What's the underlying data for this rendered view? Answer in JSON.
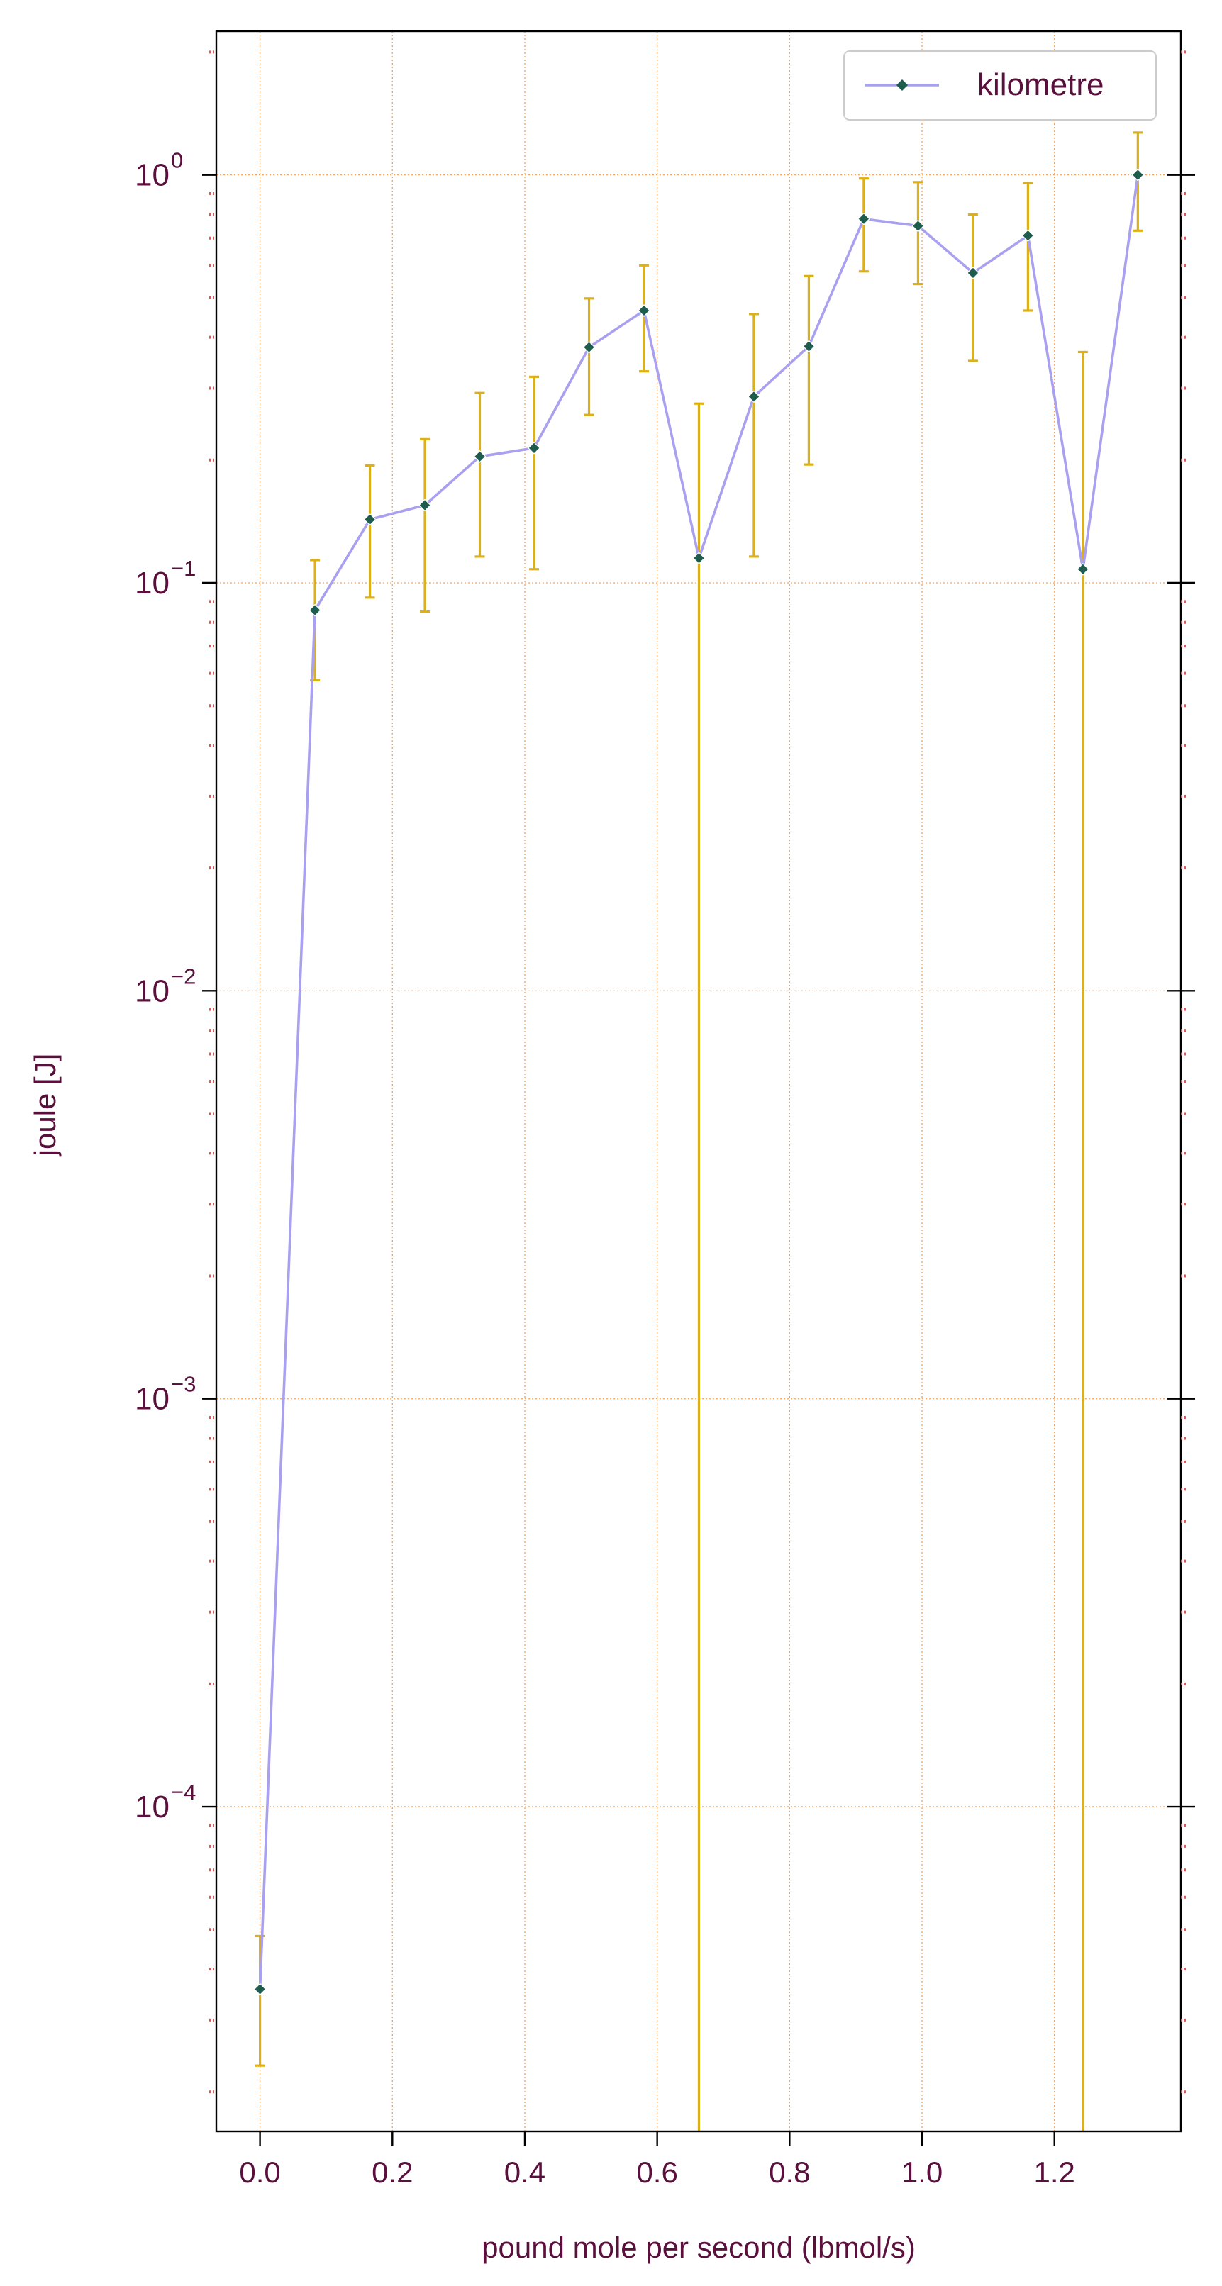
{
  "chart_data": {
    "type": "line",
    "title": "",
    "xlabel": "pound mole per second (lbmol/s)",
    "ylabel": "joule [J]",
    "xlim": [
      -0.066,
      1.391
    ],
    "ylim": [
      1.6e-05,
      2.25
    ],
    "yscale": "log",
    "grid": true,
    "legend_position": "top-right",
    "x_ticks": [
      0.0,
      0.2,
      0.4,
      0.6,
      0.8,
      1.0,
      1.2
    ],
    "x_tick_labels": [
      "0.0",
      "0.2",
      "0.4",
      "0.6",
      "0.8",
      "1.0",
      "1.2"
    ],
    "y_ticks": [
      0.0001,
      0.001,
      0.01,
      0.1,
      1
    ],
    "y_tick_labels": [
      {
        "base": "10",
        "exp": "−4"
      },
      {
        "base": "10",
        "exp": "−3"
      },
      {
        "base": "10",
        "exp": "−2"
      },
      {
        "base": "10",
        "exp": "−1"
      },
      {
        "base": "10",
        "exp": "0"
      }
    ],
    "series": [
      {
        "name": "kilometre",
        "line_color": "#a9a1f0",
        "marker_color": "#1e5d4e",
        "error_color": "#ddb013",
        "x": [
          0.0,
          0.083,
          0.166,
          0.249,
          0.332,
          0.414,
          0.497,
          0.58,
          0.663,
          0.746,
          0.829,
          0.912,
          0.994,
          1.077,
          1.16,
          1.243,
          1.326
        ],
        "y": [
          3.57e-05,
          0.0857,
          0.143,
          0.155,
          0.204,
          0.214,
          0.378,
          0.465,
          0.115,
          0.286,
          0.38,
          0.78,
          0.75,
          0.575,
          0.71,
          0.108,
          1.0
        ],
        "yerr": [
          1.25e-05,
          0.028,
          0.051,
          0.07,
          0.088,
          0.106,
          0.12,
          0.135,
          0.16,
          0.17,
          0.185,
          0.2,
          0.21,
          0.225,
          0.245,
          0.26,
          0.27
        ]
      }
    ],
    "colors": {
      "text": "#5a0f3c",
      "axis": "#000000",
      "grid": "#f3a45c",
      "minor_tick": "#e05555"
    }
  }
}
